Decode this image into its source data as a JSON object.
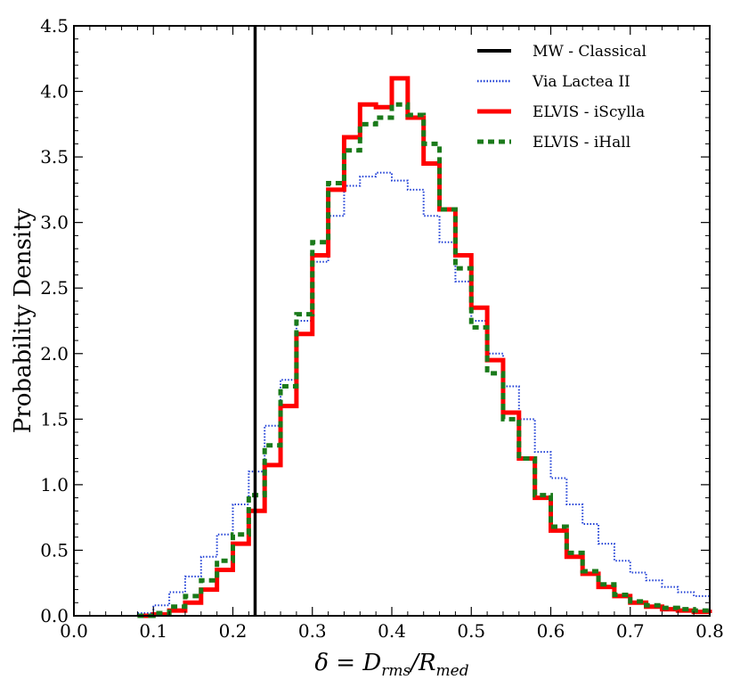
{
  "chart_data": {
    "type": "line",
    "title": "",
    "xlabel": "δ = D_rms/R_med",
    "xlabel_parts": {
      "prefix": "δ = D",
      "sub1": "rms",
      "mid": "/R",
      "sub2": "med"
    },
    "ylabel": "Probability Density",
    "xlim": [
      0.0,
      0.8
    ],
    "ylim": [
      0.0,
      4.5
    ],
    "xticks": [
      "0.0",
      "0.1",
      "0.2",
      "0.3",
      "0.4",
      "0.5",
      "0.6",
      "0.7",
      "0.8"
    ],
    "yticks": [
      "0.0",
      "0.5",
      "1.0",
      "1.5",
      "2.0",
      "2.5",
      "3.0",
      "3.5",
      "4.0",
      "4.5"
    ],
    "legend_position": "top-right",
    "vline": {
      "name": "MW - Classical",
      "x": 0.228,
      "color": "#000000"
    },
    "series": [
      {
        "name": "Via Lactea II",
        "style": "dotted",
        "color": "#1f3fd6",
        "x": [
          0.06,
          0.08,
          0.1,
          0.12,
          0.14,
          0.16,
          0.18,
          0.2,
          0.22,
          0.24,
          0.26,
          0.28,
          0.3,
          0.32,
          0.34,
          0.36,
          0.38,
          0.4,
          0.42,
          0.44,
          0.46,
          0.48,
          0.5,
          0.52,
          0.54,
          0.56,
          0.58,
          0.6,
          0.62,
          0.64,
          0.66,
          0.68,
          0.7,
          0.72,
          0.74,
          0.76,
          0.78,
          0.8
        ],
        "y": [
          0.0,
          0.02,
          0.08,
          0.18,
          0.3,
          0.45,
          0.62,
          0.85,
          1.1,
          1.45,
          1.8,
          2.25,
          2.7,
          3.05,
          3.28,
          3.35,
          3.38,
          3.32,
          3.25,
          3.05,
          2.85,
          2.55,
          2.25,
          2.0,
          1.75,
          1.5,
          1.25,
          1.05,
          0.85,
          0.7,
          0.55,
          0.42,
          0.33,
          0.27,
          0.22,
          0.18,
          0.15,
          0.13
        ]
      },
      {
        "name": "ELVIS - iScylla",
        "style": "solid",
        "color": "#ff0000",
        "x": [
          0.08,
          0.1,
          0.12,
          0.14,
          0.16,
          0.18,
          0.2,
          0.22,
          0.24,
          0.26,
          0.28,
          0.3,
          0.32,
          0.34,
          0.36,
          0.38,
          0.4,
          0.42,
          0.44,
          0.46,
          0.48,
          0.5,
          0.52,
          0.54,
          0.56,
          0.58,
          0.6,
          0.62,
          0.64,
          0.66,
          0.68,
          0.7,
          0.72,
          0.74,
          0.76,
          0.78,
          0.8
        ],
        "y": [
          0.0,
          0.01,
          0.04,
          0.1,
          0.2,
          0.35,
          0.55,
          0.8,
          1.15,
          1.6,
          2.15,
          2.75,
          3.25,
          3.65,
          3.9,
          3.88,
          4.1,
          3.8,
          3.45,
          3.1,
          2.75,
          2.35,
          1.95,
          1.55,
          1.2,
          0.9,
          0.65,
          0.45,
          0.32,
          0.22,
          0.15,
          0.1,
          0.07,
          0.05,
          0.04,
          0.03,
          0.02
        ]
      },
      {
        "name": "ELVIS - iHall",
        "style": "dashed",
        "color": "#1a7a1a",
        "x": [
          0.08,
          0.1,
          0.12,
          0.14,
          0.16,
          0.18,
          0.2,
          0.22,
          0.24,
          0.26,
          0.28,
          0.3,
          0.32,
          0.34,
          0.36,
          0.38,
          0.4,
          0.42,
          0.44,
          0.46,
          0.48,
          0.5,
          0.52,
          0.54,
          0.56,
          0.58,
          0.6,
          0.62,
          0.64,
          0.66,
          0.68,
          0.7,
          0.72,
          0.74,
          0.76,
          0.78,
          0.8
        ],
        "y": [
          0.0,
          0.02,
          0.07,
          0.15,
          0.27,
          0.42,
          0.62,
          0.92,
          1.3,
          1.75,
          2.3,
          2.85,
          3.3,
          3.55,
          3.75,
          3.8,
          3.9,
          3.82,
          3.6,
          3.1,
          2.65,
          2.2,
          1.85,
          1.5,
          1.2,
          0.92,
          0.68,
          0.48,
          0.34,
          0.24,
          0.16,
          0.11,
          0.08,
          0.06,
          0.05,
          0.04,
          0.03
        ]
      }
    ]
  },
  "legend": {
    "items": [
      "MW - Classical",
      "Via Lactea II",
      "ELVIS - iScylla",
      "ELVIS - iHall"
    ]
  }
}
